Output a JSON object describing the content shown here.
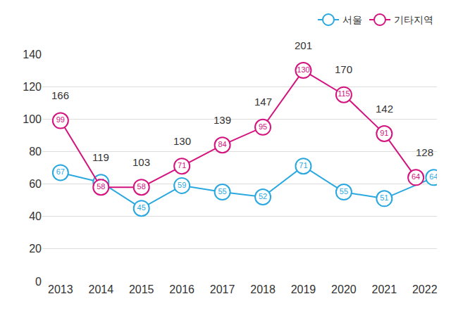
{
  "chart_data": {
    "type": "line",
    "categories": [
      "2013",
      "2014",
      "2015",
      "2016",
      "2017",
      "2018",
      "2019",
      "2020",
      "2021",
      "2022"
    ],
    "series": [
      {
        "name": "서울",
        "color": "#29a8e0",
        "values": [
          67,
          61,
          45,
          59,
          55,
          52,
          71,
          55,
          51,
          64
        ]
      },
      {
        "name": "기타지역",
        "color": "#d3137e",
        "values": [
          99,
          58,
          58,
          71,
          84,
          95,
          130,
          115,
          91,
          64
        ]
      }
    ],
    "annotations": [
      {
        "x": "2013",
        "text": "166"
      },
      {
        "x": "2014",
        "text": "119"
      },
      {
        "x": "2015",
        "text": "103"
      },
      {
        "x": "2016",
        "text": "130"
      },
      {
        "x": "2017",
        "text": "139"
      },
      {
        "x": "2018",
        "text": "147"
      },
      {
        "x": "2019",
        "text": "201"
      },
      {
        "x": "2020",
        "text": "170"
      },
      {
        "x": "2021",
        "text": "142"
      },
      {
        "x": "2022",
        "text": "128"
      }
    ],
    "ylim": [
      0,
      140
    ],
    "yticks": [
      0,
      20,
      40,
      60,
      80,
      100,
      120,
      140
    ],
    "grid": true,
    "legend": "top-right",
    "data_labels": true,
    "marker": "circle"
  }
}
